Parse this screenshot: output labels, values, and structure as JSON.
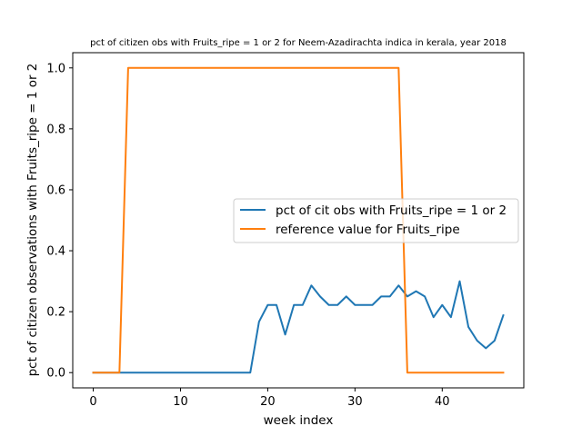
{
  "chart_data": {
    "type": "line",
    "title": "pct of citizen obs with Fruits_ripe = 1 or 2 for Neem-Azadirachta indica in kerala, year 2018",
    "xlabel": "week index",
    "ylabel": "pct of citizen observations with Fruits_ripe = 1 or 2",
    "xlim": [
      -2.35,
      49.35
    ],
    "ylim": [
      -0.05,
      1.05
    ],
    "xticks": [
      0,
      10,
      20,
      30,
      40
    ],
    "yticks": [
      0.0,
      0.2,
      0.4,
      0.6,
      0.8,
      1.0
    ],
    "xtick_labels": [
      "0",
      "10",
      "20",
      "30",
      "40"
    ],
    "ytick_labels": [
      "0.0",
      "0.2",
      "0.4",
      "0.6",
      "0.8",
      "1.0"
    ],
    "grid": false,
    "legend_position": "center-right",
    "series": [
      {
        "name": "pct of cit obs with Fruits_ripe = 1 or 2",
        "color": "#1f77b4",
        "x": [
          0,
          1,
          2,
          3,
          4,
          5,
          6,
          7,
          8,
          9,
          10,
          11,
          12,
          13,
          14,
          15,
          16,
          17,
          18,
          19,
          20,
          21,
          22,
          23,
          24,
          25,
          26,
          27,
          28,
          29,
          30,
          31,
          32,
          33,
          34,
          35,
          36,
          37,
          38,
          39,
          40,
          41,
          42,
          43,
          44,
          45,
          46,
          47
        ],
        "y": [
          0,
          0,
          0,
          0,
          0,
          0,
          0,
          0,
          0,
          0,
          0,
          0,
          0,
          0,
          0,
          0,
          0,
          0,
          0,
          0.167,
          0.222,
          0.222,
          0.125,
          0.222,
          0.222,
          0.286,
          0.25,
          0.222,
          0.222,
          0.25,
          0.222,
          0.222,
          0.222,
          0.25,
          0.25,
          0.286,
          0.25,
          0.267,
          0.25,
          0.182,
          0.222,
          0.182,
          0.3,
          0.15,
          0.105,
          0.08,
          0.105,
          0.188
        ]
      },
      {
        "name": "reference value for Fruits_ripe",
        "color": "#ff7f0e",
        "x": [
          0,
          1,
          2,
          3,
          4,
          5,
          6,
          7,
          8,
          9,
          10,
          11,
          12,
          13,
          14,
          15,
          16,
          17,
          18,
          19,
          20,
          21,
          22,
          23,
          24,
          25,
          26,
          27,
          28,
          29,
          30,
          31,
          32,
          33,
          34,
          35,
          36,
          37,
          38,
          39,
          40,
          41,
          42,
          43,
          44,
          45,
          46,
          47
        ],
        "y": [
          0,
          0,
          0,
          0,
          1,
          1,
          1,
          1,
          1,
          1,
          1,
          1,
          1,
          1,
          1,
          1,
          1,
          1,
          1,
          1,
          1,
          1,
          1,
          1,
          1,
          1,
          1,
          1,
          1,
          1,
          1,
          1,
          1,
          1,
          1,
          1,
          0,
          0,
          0,
          0,
          0,
          0,
          0,
          0,
          0,
          0,
          0,
          0
        ]
      }
    ]
  }
}
